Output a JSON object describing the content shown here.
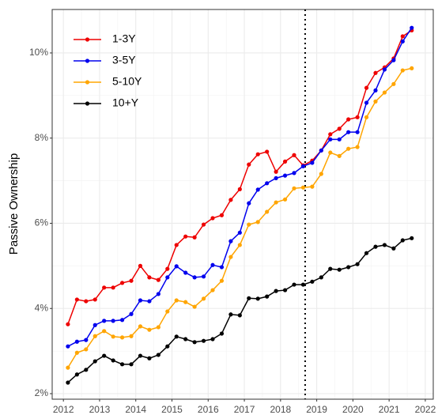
{
  "chart_data": {
    "type": "line",
    "y_label": "Passive Ownership",
    "x": [
      2012.125,
      2012.375,
      2012.625,
      2012.875,
      2013.125,
      2013.375,
      2013.625,
      2013.875,
      2014.125,
      2014.375,
      2014.625,
      2014.875,
      2015.125,
      2015.375,
      2015.625,
      2015.875,
      2016.125,
      2016.375,
      2016.625,
      2016.875,
      2017.125,
      2017.375,
      2017.625,
      2017.875,
      2018.125,
      2018.375,
      2018.625,
      2018.875,
      2019.125,
      2019.375,
      2019.625,
      2019.875,
      2020.125,
      2020.375,
      2020.625,
      2020.875,
      2021.125,
      2021.375,
      2021.625
    ],
    "series": [
      {
        "name": "1-3Y",
        "color": "#ee0000",
        "values": [
          3.63,
          4.21,
          4.17,
          4.21,
          4.49,
          4.49,
          4.6,
          4.65,
          5.0,
          4.73,
          4.67,
          4.93,
          5.49,
          5.69,
          5.67,
          5.97,
          6.12,
          6.19,
          6.55,
          6.8,
          7.38,
          7.62,
          7.68,
          7.21,
          7.45,
          7.6,
          7.36,
          7.47,
          7.71,
          8.09,
          8.22,
          8.44,
          8.49,
          9.18,
          9.53,
          9.66,
          9.87,
          10.39,
          10.53
        ]
      },
      {
        "name": "3-5Y",
        "color": "#0000ee",
        "values": [
          3.11,
          3.22,
          3.26,
          3.61,
          3.71,
          3.71,
          3.73,
          3.87,
          4.19,
          4.17,
          4.34,
          4.73,
          4.99,
          4.84,
          4.73,
          4.75,
          5.02,
          4.97,
          5.58,
          5.78,
          6.47,
          6.79,
          6.94,
          7.06,
          7.12,
          7.18,
          7.34,
          7.42,
          7.71,
          7.97,
          7.97,
          8.14,
          8.14,
          8.83,
          9.12,
          9.61,
          9.83,
          10.27,
          10.59
        ]
      },
      {
        "name": "5-10Y",
        "color": "#ffa500",
        "values": [
          2.61,
          2.96,
          3.04,
          3.35,
          3.47,
          3.34,
          3.32,
          3.35,
          3.58,
          3.5,
          3.56,
          3.93,
          4.19,
          4.15,
          4.04,
          4.23,
          4.43,
          4.65,
          5.21,
          5.49,
          5.97,
          6.03,
          6.27,
          6.49,
          6.56,
          6.82,
          6.84,
          6.86,
          7.16,
          7.66,
          7.58,
          7.75,
          7.79,
          8.49,
          8.86,
          9.07,
          9.27,
          9.59,
          9.64
        ]
      },
      {
        "name": "10+Y",
        "color": "#000000",
        "values": [
          2.26,
          2.45,
          2.56,
          2.76,
          2.89,
          2.78,
          2.69,
          2.69,
          2.89,
          2.83,
          2.91,
          3.11,
          3.34,
          3.28,
          3.21,
          3.24,
          3.28,
          3.41,
          3.86,
          3.84,
          4.24,
          4.23,
          4.28,
          4.41,
          4.43,
          4.56,
          4.56,
          4.63,
          4.73,
          4.93,
          4.91,
          4.97,
          5.04,
          5.3,
          5.45,
          5.49,
          5.41,
          5.6,
          5.65
        ]
      }
    ],
    "xlim": [
      2011.69,
      2022.22
    ],
    "xticks": [
      2012,
      2013,
      2014,
      2015,
      2016,
      2017,
      2018,
      2019,
      2020,
      2021,
      2022
    ],
    "ylim": [
      1.87,
      11.02
    ],
    "yticks": [
      {
        "value": 2,
        "label": "2%"
      },
      {
        "value": 4,
        "label": "4%"
      },
      {
        "value": 6,
        "label": "6%"
      },
      {
        "value": 8,
        "label": "8%"
      },
      {
        "value": 10,
        "label": "10%"
      }
    ],
    "vline": 2018.68,
    "grid": true,
    "legend": "top-left"
  }
}
